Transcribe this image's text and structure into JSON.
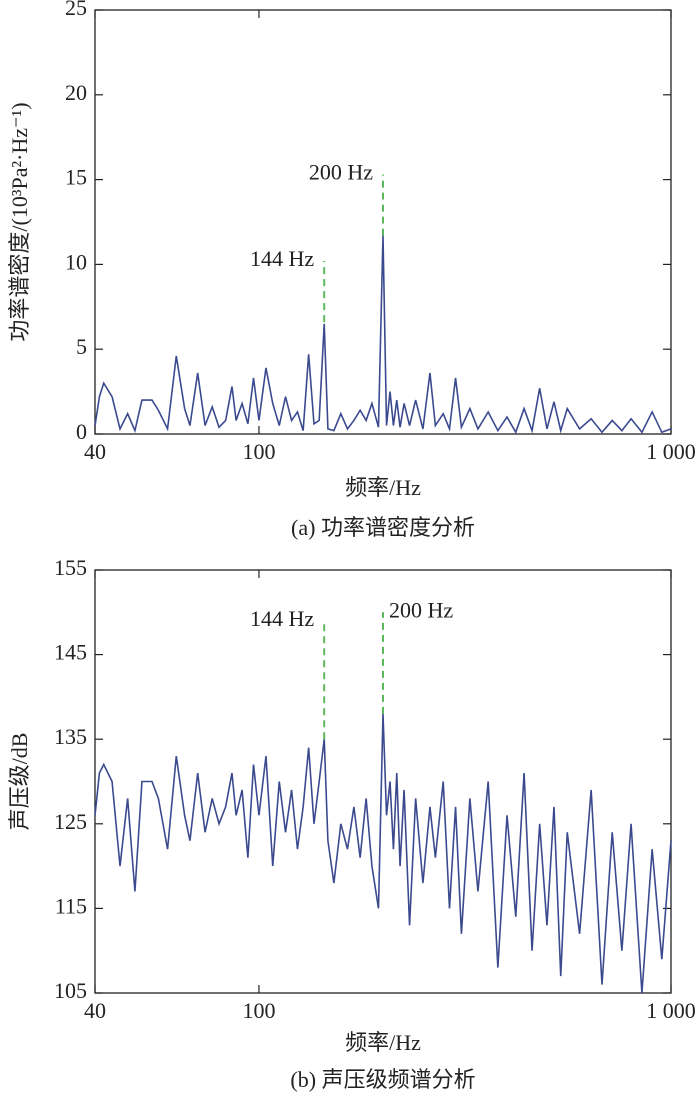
{
  "chart_data": [
    {
      "type": "line",
      "title": "(a) 功率谱密度分析",
      "xlabel": "频率/Hz",
      "ylabel": "功率谱密度/(10³Pa²·Hz⁻¹)",
      "xscale": "log",
      "xlim": [
        40,
        1000
      ],
      "xticks": [
        40,
        100,
        {
          "value": 1000,
          "label": "1 000"
        }
      ],
      "ylim": [
        0,
        25
      ],
      "yticks": [
        0,
        5,
        10,
        15,
        20,
        25
      ],
      "color": "#3b4a8f",
      "x": [
        40,
        41,
        42,
        44,
        46,
        48,
        50,
        52,
        55,
        57,
        60,
        63,
        66,
        68,
        71,
        74,
        77,
        80,
        83,
        86,
        88,
        91,
        94,
        97,
        100,
        104,
        108,
        112,
        116,
        120,
        124,
        128,
        132,
        136,
        140,
        144,
        147,
        152,
        158,
        164,
        170,
        176,
        182,
        188,
        195,
        200,
        204,
        208,
        212,
        216,
        220,
        225,
        232,
        240,
        250,
        260,
        268,
        280,
        290,
        300,
        310,
        325,
        340,
        360,
        380,
        400,
        420,
        440,
        460,
        480,
        500,
        520,
        540,
        560,
        600,
        640,
        680,
        720,
        760,
        800,
        850,
        900,
        950,
        1000
      ],
      "values": [
        0.5,
        2.2,
        3.0,
        2.2,
        0.3,
        1.2,
        0.2,
        2.0,
        2.0,
        1.4,
        0.3,
        4.6,
        1.5,
        0.5,
        3.6,
        0.5,
        1.6,
        0.4,
        0.8,
        2.8,
        0.8,
        1.8,
        0.6,
        3.3,
        0.8,
        3.9,
        1.8,
        0.5,
        2.2,
        0.8,
        1.3,
        0.2,
        4.7,
        0.6,
        0.8,
        6.5,
        0.3,
        0.2,
        1.2,
        0.3,
        0.8,
        1.4,
        0.8,
        1.8,
        0.4,
        11.7,
        0.5,
        2.5,
        0.5,
        2.0,
        0.4,
        1.8,
        0.5,
        2.0,
        0.3,
        3.6,
        0.5,
        1.2,
        0.3,
        3.3,
        0.4,
        1.5,
        0.3,
        1.3,
        0.2,
        1.0,
        0.1,
        1.5,
        0.2,
        2.7,
        0.3,
        1.9,
        0.2,
        1.5,
        0.3,
        0.9,
        0.1,
        0.8,
        0.2,
        0.9,
        0.1,
        1.3,
        0.1,
        0.3
      ],
      "annotations": [
        {
          "text": "144 Hz",
          "x": 144,
          "y": [
            6.6,
            10.2
          ],
          "color": "#5cb85c"
        },
        {
          "text": "200 Hz",
          "x": 200,
          "y": [
            11.7,
            15.3
          ],
          "color": "#5cb85c"
        }
      ]
    },
    {
      "type": "line",
      "title": "(b) 声压级频谱分析",
      "xlabel": "频率/Hz",
      "ylabel": "声压级/dB",
      "xscale": "log",
      "xlim": [
        40,
        1000
      ],
      "xticks": [
        40,
        100,
        {
          "value": 1000,
          "label": "1 000"
        }
      ],
      "ylim": [
        105,
        155
      ],
      "yticks": [
        105,
        115,
        125,
        135,
        145,
        155
      ],
      "color": "#3b4a8f",
      "x": [
        40,
        41,
        42,
        44,
        46,
        48,
        50,
        52,
        55,
        57,
        60,
        63,
        66,
        68,
        71,
        74,
        77,
        80,
        83,
        86,
        88,
        91,
        94,
        97,
        100,
        104,
        108,
        112,
        116,
        120,
        124,
        128,
        132,
        136,
        140,
        144,
        147,
        152,
        158,
        164,
        170,
        176,
        182,
        188,
        195,
        200,
        204,
        208,
        212,
        216,
        220,
        225,
        232,
        240,
        250,
        260,
        268,
        280,
        290,
        300,
        310,
        325,
        340,
        360,
        380,
        400,
        420,
        440,
        460,
        480,
        500,
        520,
        540,
        560,
        600,
        640,
        680,
        720,
        760,
        800,
        850,
        900,
        950,
        1000
      ],
      "values": [
        126,
        131,
        132,
        130,
        120,
        128,
        117,
        130,
        130,
        128,
        122,
        133,
        126,
        123,
        131,
        124,
        128,
        125,
        127,
        131,
        126,
        129,
        121,
        132,
        126,
        133,
        120,
        130,
        124,
        129,
        122,
        127,
        134,
        125,
        130,
        135,
        123,
        118,
        125,
        122,
        127,
        121,
        128,
        120,
        115,
        138,
        126,
        130,
        122,
        131,
        120,
        129,
        113,
        128,
        118,
        127,
        121,
        130,
        115,
        127,
        112,
        128,
        117,
        130,
        108,
        126,
        114,
        131,
        110,
        125,
        113,
        127,
        107,
        124,
        112,
        129,
        106,
        124,
        110,
        125,
        105,
        122,
        109,
        123
      ],
      "annotations": [
        {
          "text": "144 Hz",
          "x": 144,
          "y": [
            135,
            149
          ],
          "color": "#5cb85c"
        },
        {
          "text": "200 Hz",
          "x": 200,
          "y": [
            138,
            150
          ],
          "color": "#5cb85c"
        }
      ]
    }
  ]
}
